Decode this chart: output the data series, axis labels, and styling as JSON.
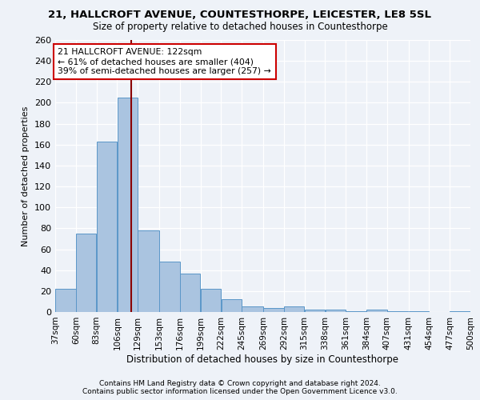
{
  "title_line1": "21, HALLCROFT AVENUE, COUNTESTHORPE, LEICESTER, LE8 5SL",
  "title_line2": "Size of property relative to detached houses in Countesthorpe",
  "xlabel": "Distribution of detached houses by size in Countesthorpe",
  "ylabel": "Number of detached properties",
  "footnote1": "Contains HM Land Registry data © Crown copyright and database right 2024.",
  "footnote2": "Contains public sector information licensed under the Open Government Licence v3.0.",
  "property_size": 122,
  "annotation_line1": "21 HALLCROFT AVENUE: 122sqm",
  "annotation_line2": "← 61% of detached houses are smaller (404)",
  "annotation_line3": "39% of semi-detached houses are larger (257) →",
  "bar_edges": [
    37,
    60,
    83,
    106,
    129,
    153,
    176,
    199,
    222,
    245,
    269,
    292,
    315,
    338,
    361,
    384,
    407,
    431,
    454,
    477,
    500
  ],
  "bar_heights": [
    22,
    75,
    163,
    205,
    78,
    48,
    37,
    22,
    12,
    5,
    4,
    5,
    2,
    2,
    1,
    2,
    1,
    1,
    0,
    1
  ],
  "bar_color": "#aac4e0",
  "bar_edge_color": "#5a96c8",
  "vline_color": "#8b0000",
  "vline_x": 122,
  "box_edge_color": "#cc0000",
  "ylim": [
    0,
    260
  ],
  "yticks": [
    0,
    20,
    40,
    60,
    80,
    100,
    120,
    140,
    160,
    180,
    200,
    220,
    240,
    260
  ],
  "bg_color": "#eef2f8",
  "grid_color": "#ffffff"
}
